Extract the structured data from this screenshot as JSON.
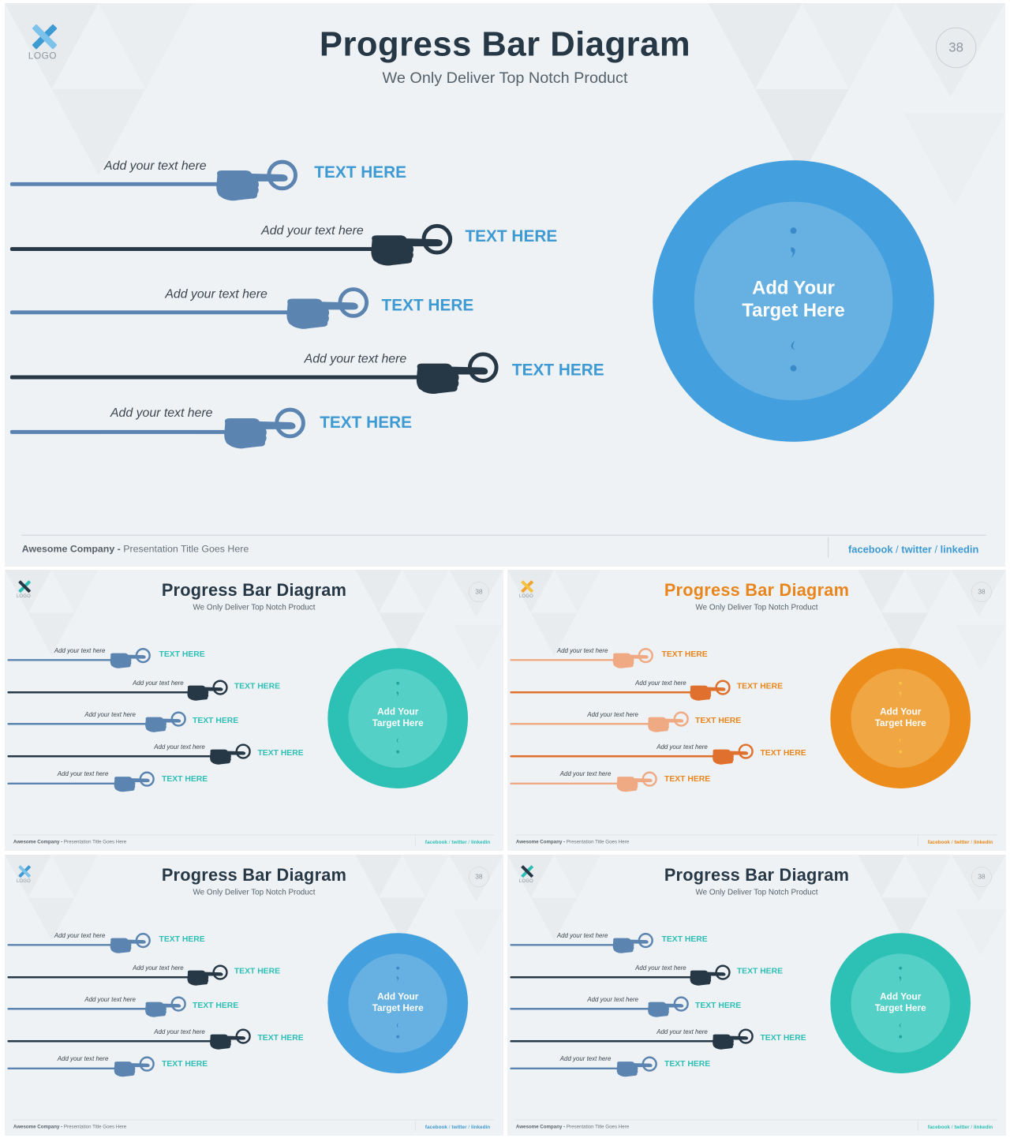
{
  "slides": [
    {
      "title": "Progress Bar Diagram",
      "subtitle": "We Only Deliver Top Notch Product",
      "logo_text": "LOGO",
      "page_number": "38",
      "bars": [
        {
          "label": "Add your text here",
          "text": "TEXT HERE"
        },
        {
          "label": "Add your text here",
          "text": "TEXT HERE"
        },
        {
          "label": "Add your text here",
          "text": "TEXT HERE"
        },
        {
          "label": "Add your text here",
          "text": "TEXT HERE"
        },
        {
          "label": "Add your text here",
          "text": "TEXT HERE"
        }
      ],
      "target_line1": "Add Your",
      "target_line2": "Target Here",
      "footer_company": "Awesome Company -",
      "footer_title": "Presentation Title Goes Here",
      "social": [
        "facebook",
        "twitter",
        "linkedin"
      ]
    },
    {
      "title": "Progress Bar Diagram",
      "subtitle": "We Only Deliver Top Notch Product",
      "logo_text": "LOGO",
      "page_number": "38",
      "bars": [
        {
          "label": "Add your text here",
          "text": "TEXT HERE"
        },
        {
          "label": "Add your text here",
          "text": "TEXT HERE"
        },
        {
          "label": "Add your text here",
          "text": "TEXT HERE"
        },
        {
          "label": "Add your text here",
          "text": "TEXT HERE"
        },
        {
          "label": "Add your text here",
          "text": "TEXT HERE"
        }
      ],
      "target_line1": "Add Your",
      "target_line2": "Target Here",
      "footer_company": "Awesome Company -",
      "footer_title": "Presentation Title Goes Here",
      "social": [
        "facebook",
        "twitter",
        "linkedin"
      ]
    },
    {
      "title": "Progress Bar Diagram",
      "subtitle": "We Only Deliver Top Notch Product",
      "logo_text": "LOGO",
      "page_number": "38",
      "bars": [
        {
          "label": "Add your text here",
          "text": "TEXT HERE"
        },
        {
          "label": "Add your text here",
          "text": "TEXT HERE"
        },
        {
          "label": "Add your text here",
          "text": "TEXT HERE"
        },
        {
          "label": "Add your text here",
          "text": "TEXT HERE"
        },
        {
          "label": "Add your text here",
          "text": "TEXT HERE"
        }
      ],
      "target_line1": "Add Your",
      "target_line2": "Target Here",
      "footer_company": "Awesome Company -",
      "footer_title": "Presentation Title Goes Here",
      "social": [
        "facebook",
        "twitter",
        "linkedin"
      ]
    },
    {
      "title": "Progress Bar Diagram",
      "subtitle": "We Only Deliver Top Notch Product",
      "logo_text": "LOGO",
      "page_number": "38",
      "bars": [
        {
          "label": "Add your text here",
          "text": "TEXT HERE"
        },
        {
          "label": "Add your text here",
          "text": "TEXT HERE"
        },
        {
          "label": "Add your text here",
          "text": "TEXT HERE"
        },
        {
          "label": "Add your text here",
          "text": "TEXT HERE"
        },
        {
          "label": "Add your text here",
          "text": "TEXT HERE"
        }
      ],
      "target_line1": "Add Your",
      "target_line2": "Target Here",
      "footer_company": "Awesome Company -",
      "footer_title": "Presentation Title Goes Here",
      "social": [
        "facebook",
        "twitter",
        "linkedin"
      ]
    },
    {
      "title": "Progress Bar Diagram",
      "subtitle": "We Only Deliver Top Notch Product",
      "logo_text": "LOGO",
      "page_number": "38",
      "bars": [
        {
          "label": "Add your text here",
          "text": "TEXT HERE"
        },
        {
          "label": "Add your text here",
          "text": "TEXT HERE"
        },
        {
          "label": "Add your text here",
          "text": "TEXT HERE"
        },
        {
          "label": "Add your text here",
          "text": "TEXT HERE"
        },
        {
          "label": "Add your text here",
          "text": "TEXT HERE"
        }
      ],
      "target_line1": "Add Your",
      "target_line2": "Target Here",
      "footer_company": "Awesome Company -",
      "footer_title": "Presentation Title Goes Here",
      "social": [
        "facebook",
        "twitter",
        "linkedin"
      ]
    }
  ],
  "themes": [
    {
      "name": "blue",
      "title_color": "#263746",
      "light": "#5b84b1",
      "dark": "#263746",
      "accent_text": "#3e9ad3",
      "circle_outer": "#439fdd",
      "circle_inner": "#66b1e2",
      "quote": "#3b8ac8",
      "logo_a": "#3e9ad3",
      "logo_b": "#7cc2ea",
      "social": "#3e9ad3"
    },
    {
      "name": "teal",
      "title_color": "#263746",
      "light": "#5b84b1",
      "dark": "#263746",
      "accent_text": "#2dbfb6",
      "circle_outer": "#2dc0b5",
      "circle_inner": "#55d0c7",
      "quote": "#22a59c",
      "logo_a": "#2dbfb6",
      "logo_b": "#263746",
      "social": "#2dbfb6"
    },
    {
      "name": "orange",
      "title_color": "#e8861d",
      "light": "#efaa83",
      "dark": "#e0702d",
      "accent_text": "#e8861d",
      "circle_outer": "#ec8c1b",
      "circle_inner": "#f1a644",
      "quote": "#f7c340",
      "logo_a": "#f0a530",
      "logo_b": "#f5c344",
      "social": "#e8861d"
    },
    {
      "name": "blue-small",
      "title_color": "#263746",
      "light": "#5b84b1",
      "dark": "#263746",
      "accent_text": "#2dbfb6",
      "circle_outer": "#439fdd",
      "circle_inner": "#66b1e2",
      "quote": "#3b8ac8",
      "logo_a": "#3e9ad3",
      "logo_b": "#7cc2ea",
      "social": "#3e9ad3"
    },
    {
      "name": "teal-2",
      "title_color": "#263746",
      "light": "#5b84b1",
      "dark": "#263746",
      "accent_text": "#2dbfb6",
      "circle_outer": "#2dc0b5",
      "circle_inner": "#55d0c7",
      "quote": "#22a59c",
      "logo_a": "#2dbfb6",
      "logo_b": "#263746",
      "social": "#2dbfb6"
    }
  ]
}
